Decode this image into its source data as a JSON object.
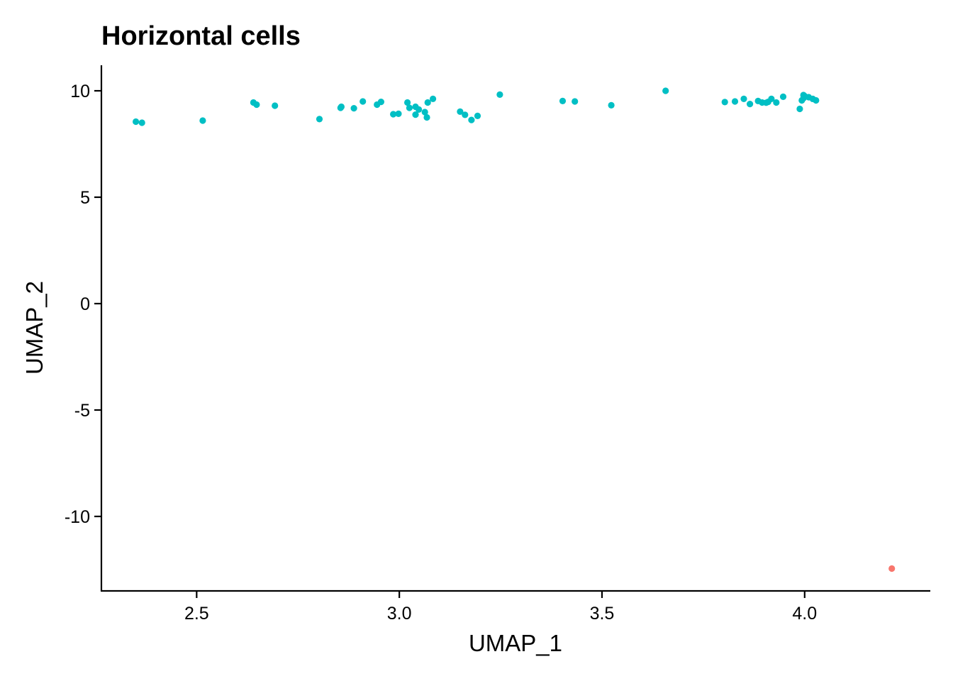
{
  "chart_data": {
    "type": "scatter",
    "title": "Horizontal cells",
    "xlabel": "UMAP_1",
    "ylabel": "UMAP_2",
    "xlim": [
      2.265,
      4.31
    ],
    "ylim": [
      -13.5,
      11.2
    ],
    "x_ticks": [
      2.5,
      3.0,
      3.5,
      4.0
    ],
    "x_tick_labels": [
      "2.5",
      "3.0",
      "3.5",
      "4.0"
    ],
    "y_ticks": [
      10,
      5,
      0,
      -5,
      -10
    ],
    "y_tick_labels": [
      "10",
      "5",
      "0",
      "-5",
      "-10"
    ],
    "grid": false,
    "legend": "none",
    "series": [
      {
        "color": "#00BFC4",
        "points": [
          [
            2.35,
            8.55
          ],
          [
            2.365,
            8.5
          ],
          [
            2.515,
            8.6
          ],
          [
            2.64,
            9.45
          ],
          [
            2.648,
            9.35
          ],
          [
            2.693,
            9.3
          ],
          [
            2.803,
            8.67
          ],
          [
            2.855,
            9.2
          ],
          [
            2.857,
            9.25
          ],
          [
            2.888,
            9.18
          ],
          [
            2.91,
            9.5
          ],
          [
            2.945,
            9.35
          ],
          [
            2.955,
            9.48
          ],
          [
            2.985,
            8.9
          ],
          [
            2.998,
            8.92
          ],
          [
            3.02,
            9.45
          ],
          [
            3.025,
            9.2
          ],
          [
            3.04,
            9.25
          ],
          [
            3.04,
            8.88
          ],
          [
            3.048,
            9.12
          ],
          [
            3.063,
            9.0
          ],
          [
            3.068,
            8.75
          ],
          [
            3.07,
            9.45
          ],
          [
            3.083,
            9.62
          ],
          [
            3.15,
            9.02
          ],
          [
            3.162,
            8.87
          ],
          [
            3.178,
            8.63
          ],
          [
            3.193,
            8.82
          ],
          [
            3.248,
            9.82
          ],
          [
            3.403,
            9.52
          ],
          [
            3.433,
            9.5
          ],
          [
            3.523,
            9.32
          ],
          [
            3.657,
            10.0
          ],
          [
            3.803,
            9.47
          ],
          [
            3.828,
            9.5
          ],
          [
            3.85,
            9.62
          ],
          [
            3.865,
            9.38
          ],
          [
            3.885,
            9.52
          ],
          [
            3.895,
            9.45
          ],
          [
            3.905,
            9.44
          ],
          [
            3.91,
            9.48
          ],
          [
            3.918,
            9.62
          ],
          [
            3.93,
            9.45
          ],
          [
            3.947,
            9.72
          ],
          [
            3.988,
            9.15
          ],
          [
            3.993,
            9.55
          ],
          [
            3.997,
            9.8
          ],
          [
            4.0,
            9.75
          ],
          [
            4.01,
            9.7
          ],
          [
            4.02,
            9.62
          ],
          [
            4.028,
            9.55
          ],
          [
            3.997,
            9.65
          ]
        ]
      },
      {
        "color": "#F8766D",
        "points": [
          [
            4.215,
            -12.45
          ]
        ]
      }
    ]
  }
}
